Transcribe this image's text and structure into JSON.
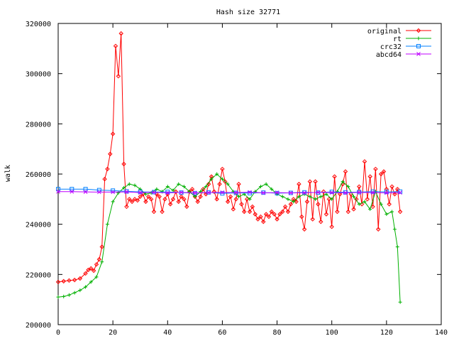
{
  "chart_data": {
    "type": "line",
    "title": "Hash size 32771",
    "xlabel": "",
    "ylabel": "walk",
    "xlim": [
      0,
      140
    ],
    "ylim": [
      200000,
      320000
    ],
    "xticks": [
      0,
      20,
      40,
      60,
      80,
      100,
      120,
      140
    ],
    "yticks": [
      200000,
      220000,
      240000,
      260000,
      280000,
      300000,
      320000
    ],
    "x_tick_labels": [
      "0",
      "20",
      "40",
      "60",
      "80",
      "100",
      "120",
      "140"
    ],
    "y_tick_labels": [
      "200000",
      "220000",
      "240000",
      "260000",
      "280000",
      "300000",
      "320000"
    ],
    "grid": false,
    "legend_position": "top-right",
    "series": [
      {
        "name": "original",
        "color": "#ff0000",
        "marker": "diamond",
        "points": [
          [
            0,
            217000
          ],
          [
            2,
            217300
          ],
          [
            4,
            217600
          ],
          [
            6,
            217800
          ],
          [
            8,
            218400
          ],
          [
            10,
            220400
          ],
          [
            11,
            221800
          ],
          [
            12,
            222400
          ],
          [
            13,
            221500
          ],
          [
            14,
            224000
          ],
          [
            15,
            226000
          ],
          [
            16,
            231000
          ],
          [
            17,
            258000
          ],
          [
            18,
            262000
          ],
          [
            19,
            268000
          ],
          [
            20,
            276000
          ],
          [
            21,
            311000
          ],
          [
            22,
            299000
          ],
          [
            23,
            316000
          ],
          [
            24,
            264000
          ],
          [
            25,
            247000
          ],
          [
            26,
            250000
          ],
          [
            27,
            249000
          ],
          [
            28,
            250000
          ],
          [
            29,
            249500
          ],
          [
            30,
            251000
          ],
          [
            31,
            252000
          ],
          [
            32,
            249000
          ],
          [
            33,
            251000
          ],
          [
            34,
            250000
          ],
          [
            35,
            245000
          ],
          [
            36,
            252000
          ],
          [
            37,
            251000
          ],
          [
            38,
            245000
          ],
          [
            39,
            250000
          ],
          [
            40,
            252000
          ],
          [
            41,
            248000
          ],
          [
            42,
            250000
          ],
          [
            43,
            253000
          ],
          [
            44,
            249000
          ],
          [
            45,
            251000
          ],
          [
            46,
            250000
          ],
          [
            47,
            247000
          ],
          [
            48,
            253000
          ],
          [
            49,
            254000
          ],
          [
            50,
            251000
          ],
          [
            51,
            249000
          ],
          [
            52,
            251000
          ],
          [
            53,
            254000
          ],
          [
            54,
            252000
          ],
          [
            55,
            256000
          ],
          [
            56,
            259000
          ],
          [
            57,
            253000
          ],
          [
            58,
            250000
          ],
          [
            59,
            256000
          ],
          [
            60,
            262000
          ],
          [
            61,
            257000
          ],
          [
            62,
            249000
          ],
          [
            63,
            251000
          ],
          [
            64,
            246000
          ],
          [
            65,
            250000
          ],
          [
            66,
            256000
          ],
          [
            67,
            248000
          ],
          [
            68,
            245000
          ],
          [
            69,
            250000
          ],
          [
            70,
            245000
          ],
          [
            71,
            247000
          ],
          [
            72,
            244000
          ],
          [
            73,
            242000
          ],
          [
            74,
            243000
          ],
          [
            75,
            241000
          ],
          [
            76,
            244000
          ],
          [
            77,
            243000
          ],
          [
            78,
            245000
          ],
          [
            79,
            244000
          ],
          [
            80,
            242000
          ],
          [
            81,
            244000
          ],
          [
            82,
            245000
          ],
          [
            83,
            247000
          ],
          [
            84,
            245000
          ],
          [
            85,
            248000
          ],
          [
            86,
            250000
          ],
          [
            87,
            249000
          ],
          [
            88,
            256000
          ],
          [
            89,
            243000
          ],
          [
            90,
            238000
          ],
          [
            91,
            249000
          ],
          [
            92,
            257000
          ],
          [
            93,
            242000
          ],
          [
            94,
            257000
          ],
          [
            95,
            248000
          ],
          [
            96,
            241000
          ],
          [
            97,
            253000
          ],
          [
            98,
            244000
          ],
          [
            99,
            250000
          ],
          [
            100,
            239000
          ],
          [
            101,
            259000
          ],
          [
            102,
            245000
          ],
          [
            103,
            252000
          ],
          [
            104,
            256000
          ],
          [
            105,
            261000
          ],
          [
            106,
            245000
          ],
          [
            107,
            252000
          ],
          [
            108,
            246000
          ],
          [
            109,
            250000
          ],
          [
            110,
            255000
          ],
          [
            111,
            248000
          ],
          [
            112,
            265000
          ],
          [
            113,
            250000
          ],
          [
            114,
            259000
          ],
          [
            115,
            247000
          ],
          [
            116,
            262000
          ],
          [
            117,
            238000
          ],
          [
            118,
            260000
          ],
          [
            119,
            261000
          ],
          [
            120,
            254000
          ],
          [
            121,
            248000
          ],
          [
            122,
            255000
          ],
          [
            123,
            252000
          ],
          [
            124,
            254000
          ],
          [
            125,
            245000
          ]
        ]
      },
      {
        "name": "rt",
        "color": "#00b000",
        "marker": "plus",
        "points": [
          [
            0,
            211000
          ],
          [
            2,
            211200
          ],
          [
            4,
            211800
          ],
          [
            6,
            212700
          ],
          [
            8,
            213700
          ],
          [
            10,
            215000
          ],
          [
            12,
            217000
          ],
          [
            14,
            219000
          ],
          [
            16,
            225000
          ],
          [
            18,
            240000
          ],
          [
            20,
            249000
          ],
          [
            22,
            252500
          ],
          [
            24,
            254500
          ],
          [
            26,
            256000
          ],
          [
            28,
            255500
          ],
          [
            30,
            254000
          ],
          [
            32,
            252000
          ],
          [
            34,
            252500
          ],
          [
            36,
            254000
          ],
          [
            38,
            253000
          ],
          [
            40,
            255000
          ],
          [
            42,
            253500
          ],
          [
            44,
            256000
          ],
          [
            46,
            255000
          ],
          [
            48,
            253000
          ],
          [
            50,
            251000
          ],
          [
            52,
            253000
          ],
          [
            54,
            255000
          ],
          [
            56,
            258000
          ],
          [
            58,
            260000
          ],
          [
            60,
            258000
          ],
          [
            62,
            256000
          ],
          [
            64,
            253000
          ],
          [
            66,
            251000
          ],
          [
            68,
            252000
          ],
          [
            70,
            250000
          ],
          [
            72,
            253000
          ],
          [
            74,
            255000
          ],
          [
            76,
            256000
          ],
          [
            78,
            254000
          ],
          [
            80,
            252000
          ],
          [
            82,
            251000
          ],
          [
            84,
            250000
          ],
          [
            86,
            249000
          ],
          [
            88,
            251000
          ],
          [
            90,
            252000
          ],
          [
            92,
            251000
          ],
          [
            94,
            250000
          ],
          [
            96,
            251000
          ],
          [
            98,
            252000
          ],
          [
            100,
            250000
          ],
          [
            102,
            253000
          ],
          [
            104,
            257000
          ],
          [
            106,
            255000
          ],
          [
            108,
            251000
          ],
          [
            110,
            248000
          ],
          [
            112,
            249000
          ],
          [
            114,
            246000
          ],
          [
            116,
            253000
          ],
          [
            118,
            248000
          ],
          [
            120,
            244000
          ],
          [
            122,
            245000
          ],
          [
            123,
            238000
          ],
          [
            124,
            231000
          ],
          [
            125,
            209000
          ]
        ]
      },
      {
        "name": "crc32",
        "color": "#0080ff",
        "marker": "square",
        "points": [
          [
            0,
            254000
          ],
          [
            5,
            254000
          ],
          [
            10,
            254000
          ],
          [
            15,
            253600
          ],
          [
            20,
            253400
          ],
          [
            25,
            253100
          ],
          [
            30,
            252900
          ],
          [
            35,
            252800
          ],
          [
            40,
            252900
          ],
          [
            45,
            252600
          ],
          [
            50,
            252400
          ],
          [
            55,
            252700
          ],
          [
            60,
            252300
          ],
          [
            65,
            252500
          ],
          [
            70,
            252400
          ],
          [
            75,
            252600
          ],
          [
            80,
            252400
          ],
          [
            85,
            252500
          ],
          [
            90,
            252700
          ],
          [
            95,
            252600
          ],
          [
            100,
            252900
          ],
          [
            105,
            252700
          ],
          [
            110,
            252800
          ],
          [
            115,
            253000
          ],
          [
            120,
            252900
          ],
          [
            125,
            253000
          ]
        ]
      },
      {
        "name": "abcd64",
        "color": "#c000ff",
        "marker": "x",
        "points": [
          [
            0,
            253000
          ],
          [
            5,
            253000
          ],
          [
            10,
            252900
          ],
          [
            15,
            252800
          ],
          [
            20,
            252800
          ],
          [
            25,
            252900
          ],
          [
            30,
            252600
          ],
          [
            35,
            252700
          ],
          [
            40,
            252500
          ],
          [
            45,
            252700
          ],
          [
            50,
            252500
          ],
          [
            55,
            252600
          ],
          [
            60,
            252700
          ],
          [
            65,
            252600
          ],
          [
            70,
            252800
          ],
          [
            75,
            252500
          ],
          [
            80,
            252600
          ],
          [
            85,
            252500
          ],
          [
            90,
            252500
          ],
          [
            95,
            252700
          ],
          [
            100,
            252600
          ],
          [
            105,
            252500
          ],
          [
            110,
            252700
          ],
          [
            115,
            252600
          ],
          [
            120,
            252500
          ],
          [
            125,
            252600
          ]
        ]
      }
    ]
  }
}
